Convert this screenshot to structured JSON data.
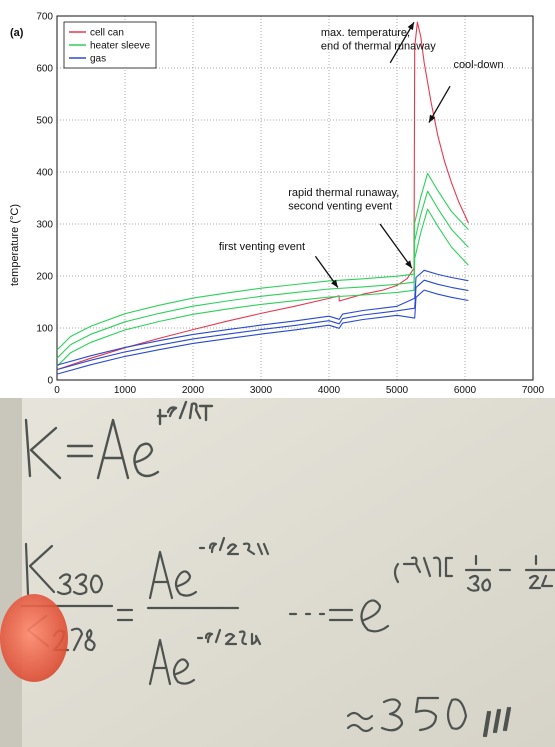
{
  "chart_data": {
    "type": "line",
    "panel_label": "(a)",
    "ylabel": "temperature (°C)",
    "xlabel": "",
    "xlim": [
      0,
      7000
    ],
    "ylim": [
      0,
      700
    ],
    "x_ticks": [
      0,
      1000,
      2000,
      3000,
      4000,
      5000,
      6000,
      7000
    ],
    "y_ticks": [
      0,
      100,
      200,
      300,
      400,
      500,
      600,
      700
    ],
    "grid": true,
    "legend_position": "top-left",
    "colors": {
      "cell_can": "#e8384f",
      "heater_sleeve": "#2ed15a",
      "gas": "#2a4bd0"
    },
    "series": [
      {
        "name": "cell can",
        "color": "#e8384f",
        "x": [
          0,
          500,
          1000,
          1500,
          2000,
          2500,
          3000,
          3500,
          4000,
          4150,
          4150,
          4500,
          4800,
          5000,
          5150,
          5250,
          5260,
          5300,
          5350,
          5400,
          5500,
          5600,
          5700,
          5800,
          5900,
          6050
        ],
        "y": [
          20,
          42,
          62,
          80,
          97,
          113,
          128,
          142,
          157,
          162,
          152,
          165,
          173,
          182,
          195,
          215,
          640,
          688,
          660,
          610,
          535,
          470,
          420,
          380,
          345,
          302
        ]
      },
      {
        "name": "heater sleeve",
        "color": "#2ed15a",
        "x": [
          0,
          200,
          500,
          1000,
          1500,
          2000,
          2500,
          3000,
          3500,
          4000,
          4500,
          5000,
          5250,
          5260,
          5350,
          5450,
          5600,
          5800,
          6050
        ],
        "y": [
          42,
          68,
          88,
          112,
          128,
          142,
          152,
          161,
          168,
          175,
          179,
          184,
          188,
          268,
          318,
          363,
          330,
          290,
          255
        ]
      },
      {
        "name": "gas",
        "color": "#2a4bd0",
        "x": [
          0,
          500,
          1000,
          1500,
          2000,
          2500,
          3000,
          3500,
          4000,
          4150,
          4200,
          4500,
          5000,
          5260,
          5280,
          5400,
          5600,
          5800,
          6050
        ],
        "y": [
          20,
          38,
          54,
          67,
          79,
          88,
          97,
          105,
          114,
          108,
          118,
          125,
          133,
          138,
          178,
          192,
          184,
          178,
          172
        ]
      }
    ],
    "annotations": [
      {
        "text": "max. temperature,",
        "x": 3880,
        "y": 662
      },
      {
        "text": "end of thermal runaway",
        "x": 3880,
        "y": 636
      },
      {
        "text": "cool-down",
        "x": 5830,
        "y": 600
      },
      {
        "text": "rapid thermal runaway,",
        "x": 3400,
        "y": 354
      },
      {
        "text": "second venting event",
        "x": 3400,
        "y": 328
      },
      {
        "text": "first venting event",
        "x": 2380,
        "y": 250
      }
    ]
  },
  "whiteboard": {
    "line1": "k = Ae^(-Ea/RT)",
    "line2": "k330 / k298 = Ae^(-Ea/330R) / Ae^(-Ea/298R) = ... = e^((-Ea/R)[1/330 - 1/29",
    "line3": "≈ 350 !!!"
  }
}
